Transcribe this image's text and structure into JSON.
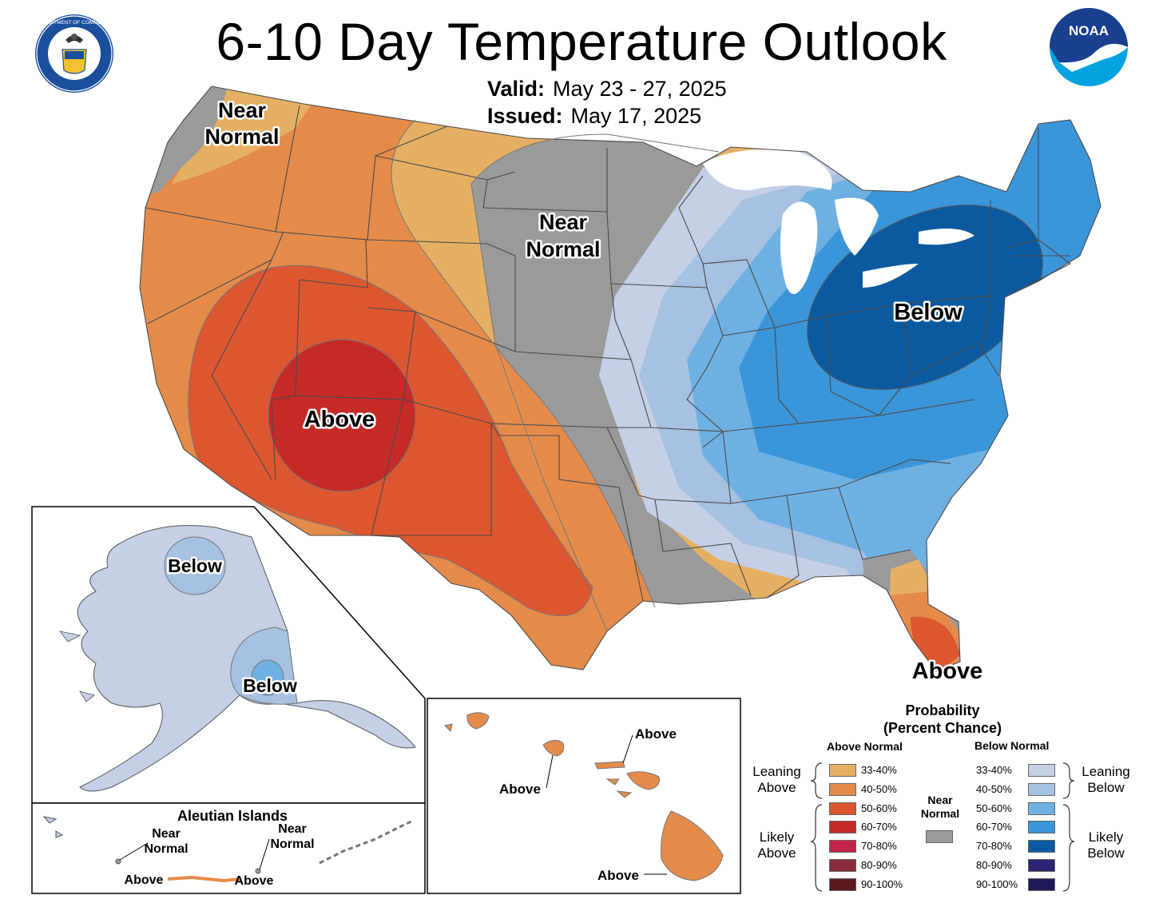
{
  "title": "6-10 Day Temperature Outlook",
  "valid_label": "Valid:",
  "valid_value": "May 23 - 27, 2025",
  "issued_label": "Issued:",
  "issued_value": "May 17, 2025",
  "logos": {
    "left": "department-of-commerce-seal",
    "right": "noaa-logo",
    "noaa_text": "NOAA"
  },
  "seal_text": "DEPARTMENT OF COMMERCE · UNITED STATES OF AMERICA",
  "map_labels": {
    "nw_near": [
      "Near",
      "Normal"
    ],
    "plains_near": [
      "Near",
      "Normal"
    ],
    "sw_above": "Above",
    "ne_below": "Below",
    "fl_above": "Above",
    "ak_below_north": "Below",
    "ak_below_south": "Below",
    "hi_above_north": "Above",
    "hi_above_west": "Above",
    "hi_above_south": "Above",
    "aleutian_title": "Aleutian Islands",
    "aleutian_near_1": [
      "Near",
      "Normal"
    ],
    "aleutian_near_2": [
      "Near",
      "Normal"
    ],
    "aleutian_above_1": "Above",
    "aleutian_above_2": "Above"
  },
  "colors": {
    "above_33_40": "#e6b064",
    "above_40_50": "#e48b4a",
    "above_50_60": "#dc5630",
    "above_60_70": "#c62a27",
    "above_70_80": "#c4244a",
    "above_80_90": "#8b2a3a",
    "above_90_100": "#5a1a1e",
    "near_normal": "#9a9a9a",
    "below_33_40": "#c5cfe6",
    "below_40_50": "#a6c1e1",
    "below_50_60": "#6fb0e2",
    "below_60_70": "#3a95d9",
    "below_70_80": "#0b5aa0",
    "below_80_90": "#2b2373",
    "below_90_100": "#1e1a57"
  },
  "legend": {
    "title": [
      "Probability",
      "(Percent Chance)"
    ],
    "above_header": "Above Normal",
    "below_header": "Below Normal",
    "near_header": [
      "Near",
      "Normal"
    ],
    "leaning_above": [
      "Leaning",
      "Above"
    ],
    "likely_above": [
      "Likely",
      "Above"
    ],
    "leaning_below": [
      "Leaning",
      "Below"
    ],
    "likely_below": [
      "Likely",
      "Below"
    ],
    "above_rows": [
      "33-40%",
      "40-50%",
      "50-60%",
      "60-70%",
      "70-80%",
      "80-90%",
      "90-100%"
    ],
    "below_rows": [
      "33-40%",
      "40-50%",
      "50-60%",
      "60-70%",
      "70-80%",
      "80-90%",
      "90-100%"
    ]
  }
}
